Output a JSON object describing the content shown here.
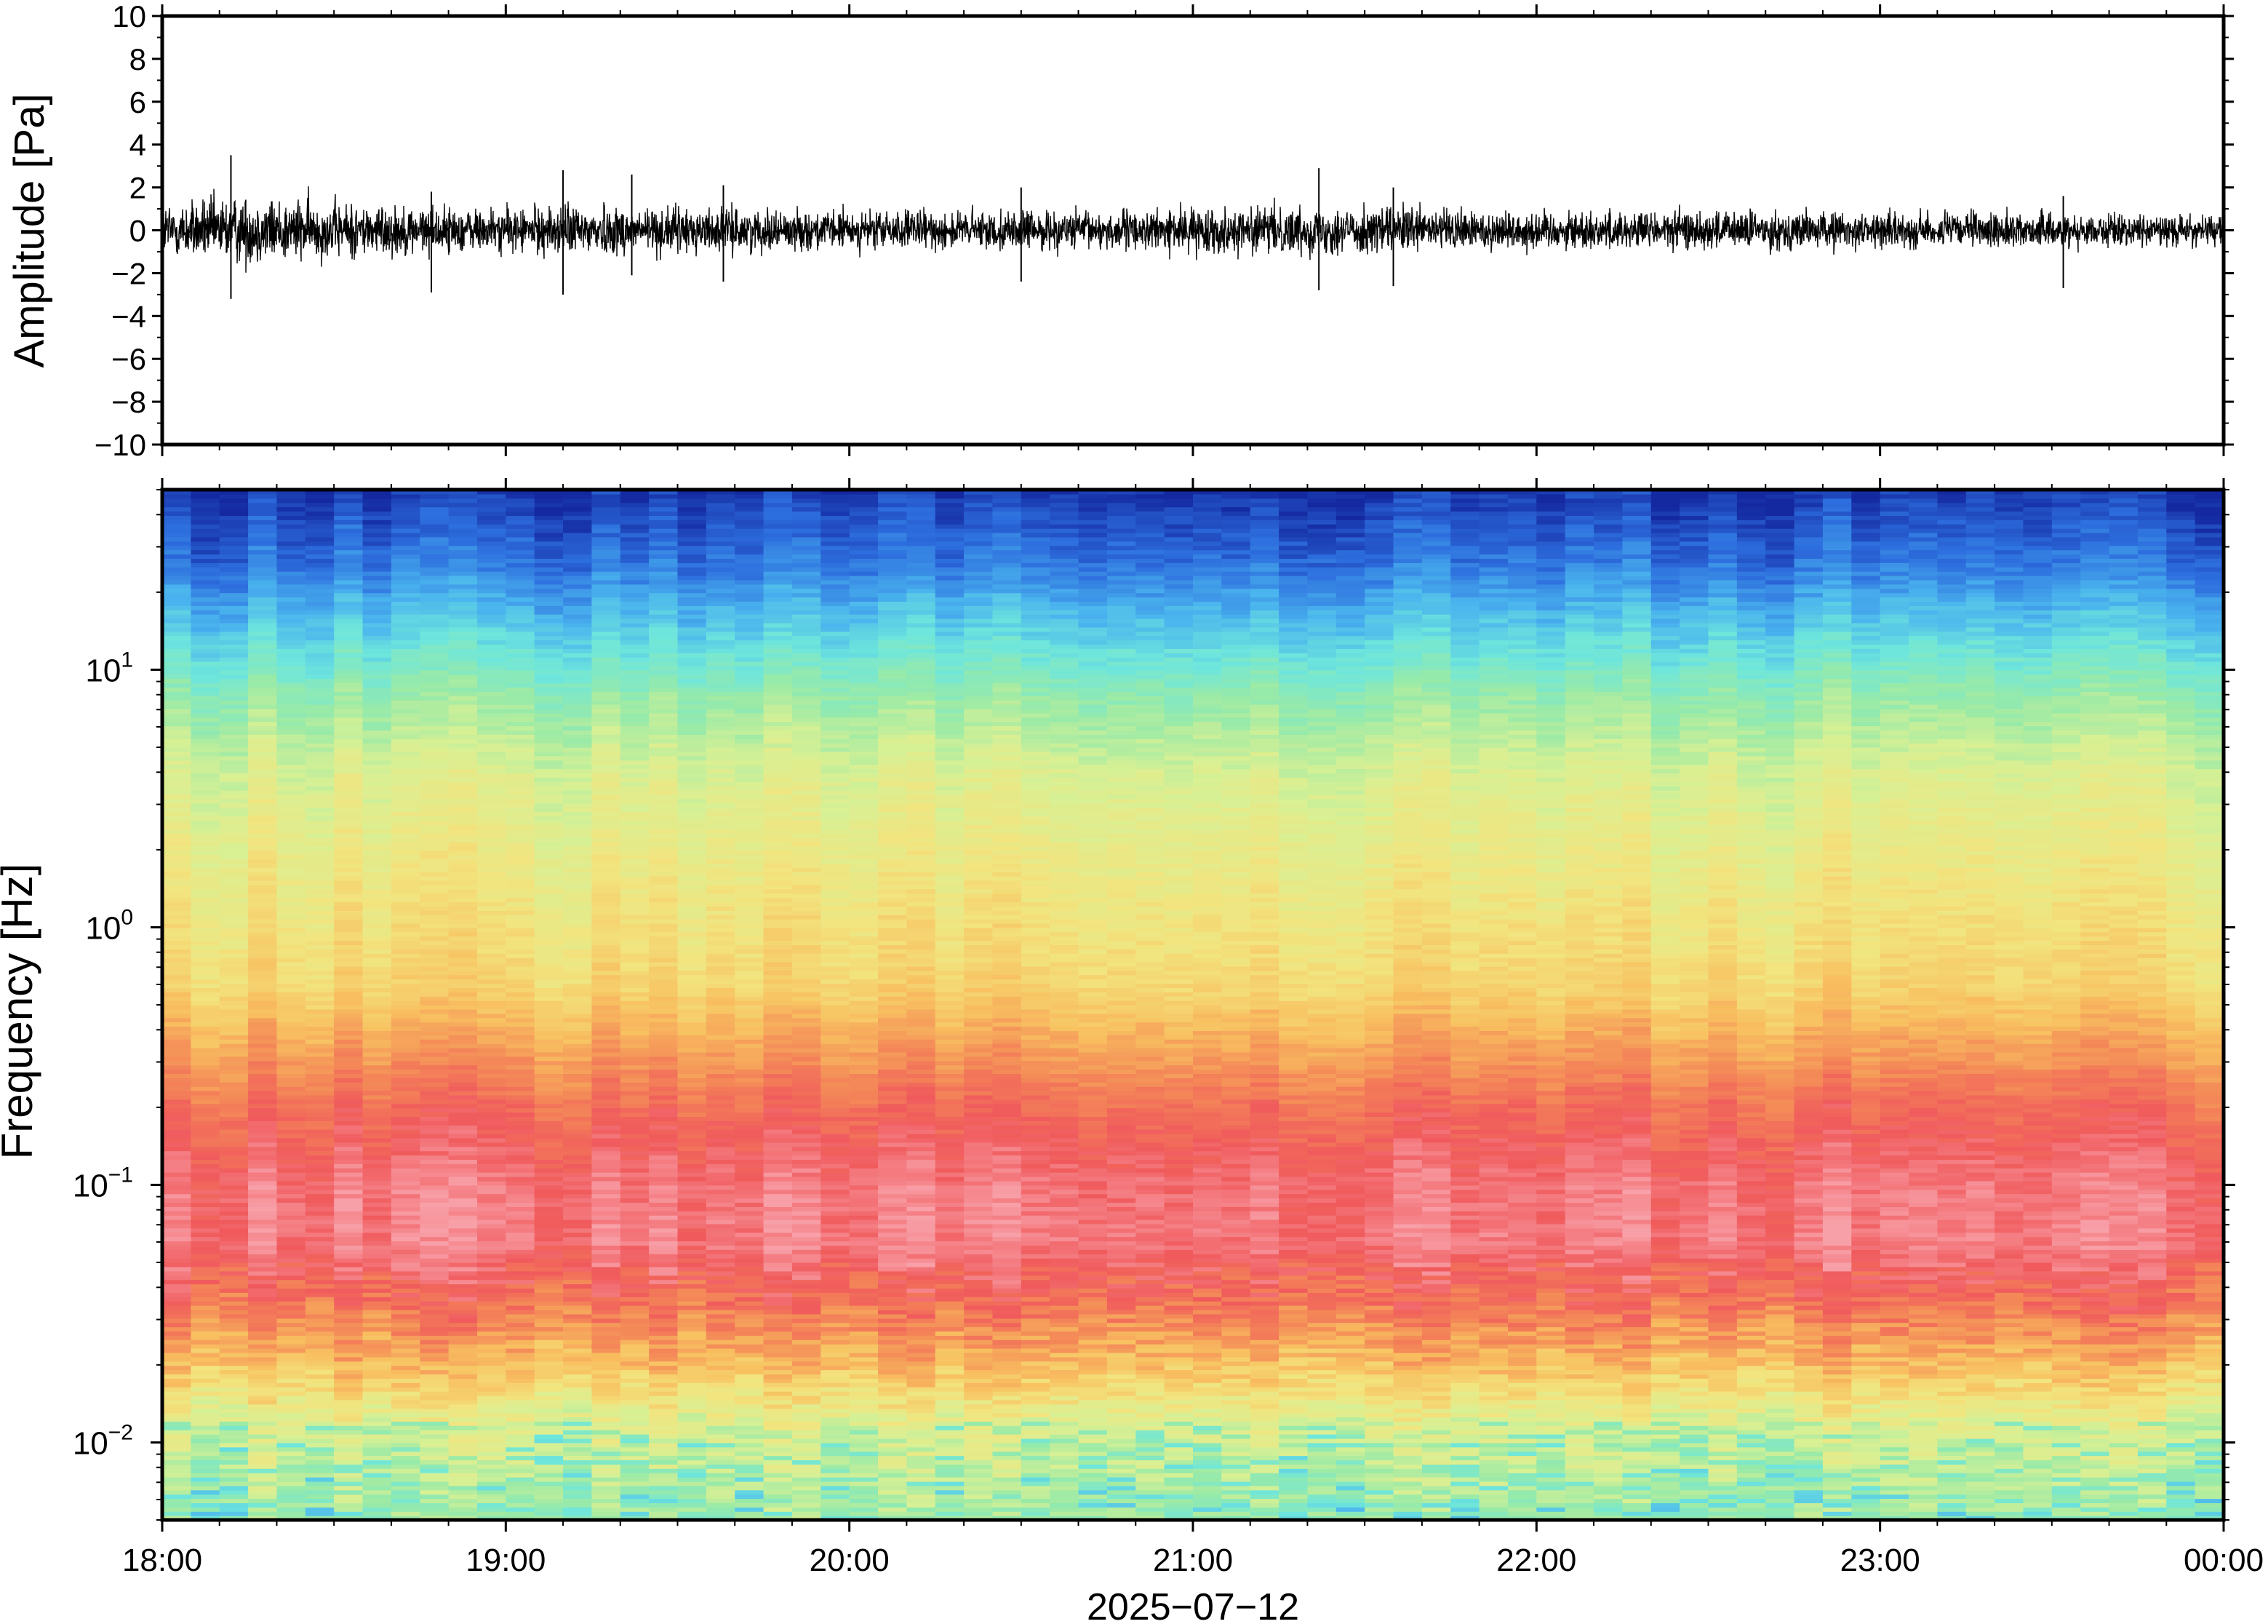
{
  "chart_data": [
    {
      "type": "line",
      "panel": "waveform",
      "ylabel": "Amplitude [Pa]",
      "ylim": [
        -10,
        10
      ],
      "yticks": [
        {
          "value": 10,
          "label": "10"
        },
        {
          "value": 8,
          "label": "8"
        },
        {
          "value": 6,
          "label": "6"
        },
        {
          "value": 4,
          "label": "4"
        },
        {
          "value": 2,
          "label": "2"
        },
        {
          "value": 0,
          "label": "0"
        },
        {
          "value": -2,
          "label": "−2"
        },
        {
          "value": -4,
          "label": "−4"
        },
        {
          "value": -6,
          "label": "−6"
        },
        {
          "value": -8,
          "label": "−8"
        },
        {
          "value": -10,
          "label": "−10"
        }
      ],
      "x_range": [
        "2025-07-12T18:00",
        "2025-07-13T00:00"
      ],
      "envelope": {
        "times": [
          "18:00",
          "18:15",
          "18:30",
          "18:45",
          "19:00",
          "19:15",
          "19:30",
          "19:45",
          "20:00",
          "20:15",
          "20:30",
          "20:45",
          "21:00",
          "21:15",
          "21:30",
          "21:45",
          "22:00",
          "22:15",
          "22:30",
          "22:45",
          "23:00",
          "23:15",
          "23:30",
          "23:45",
          "00:00"
        ],
        "amplitude": [
          1.3,
          1.6,
          1.3,
          1.1,
          1.0,
          1.2,
          1.1,
          0.9,
          0.9,
          0.9,
          0.9,
          0.9,
          1.0,
          1.1,
          1.1,
          1.0,
          0.9,
          0.9,
          0.9,
          0.9,
          0.8,
          0.8,
          0.8,
          0.7,
          0.7
        ]
      },
      "spikes": [
        {
          "time": "18:12",
          "max": 3.5,
          "min": -3.2
        },
        {
          "time": "18:47",
          "max": 1.8,
          "min": -2.9
        },
        {
          "time": "19:10",
          "max": 2.8,
          "min": -3.0
        },
        {
          "time": "19:22",
          "max": 2.6,
          "min": -2.1
        },
        {
          "time": "19:38",
          "max": 2.1,
          "min": -2.4
        },
        {
          "time": "20:30",
          "max": 2.0,
          "min": -2.4
        },
        {
          "time": "21:22",
          "max": 2.9,
          "min": -2.8
        },
        {
          "time": "21:35",
          "max": 2.0,
          "min": -2.6
        },
        {
          "time": "23:32",
          "max": 1.6,
          "min": -2.7
        }
      ]
    },
    {
      "type": "heatmap",
      "panel": "spectrogram",
      "ylabel": "Frequency [Hz]",
      "yscale": "log",
      "ylim": [
        0.005,
        50
      ],
      "yticks": [
        {
          "value": 0.01,
          "base": "10",
          "exp": "−2"
        },
        {
          "value": 0.1,
          "base": "10",
          "exp": "−1"
        },
        {
          "value": 1,
          "base": "10",
          "exp": "0"
        },
        {
          "value": 10,
          "base": "10",
          "exp": "1"
        }
      ],
      "colormap": [
        "#1428a0",
        "#2d6ede",
        "#4ab4ee",
        "#6ee6dc",
        "#98eaa8",
        "#d8f094",
        "#f2e47e",
        "#f8c060",
        "#f48a58",
        "#f05a5c",
        "#f8a0a8"
      ],
      "profile": [
        {
          "freq": 0.005,
          "level": 0.4
        },
        {
          "freq": 0.012,
          "level": 0.52
        },
        {
          "freq": 0.02,
          "level": 0.7
        },
        {
          "freq": 0.035,
          "level": 0.85
        },
        {
          "freq": 0.06,
          "level": 0.95
        },
        {
          "freq": 0.1,
          "level": 0.94
        },
        {
          "freq": 0.2,
          "level": 0.86
        },
        {
          "freq": 0.35,
          "level": 0.75
        },
        {
          "freq": 0.6,
          "level": 0.64
        },
        {
          "freq": 1.5,
          "level": 0.58
        },
        {
          "freq": 4,
          "level": 0.51
        },
        {
          "freq": 8,
          "level": 0.39
        },
        {
          "freq": 15,
          "level": 0.24
        },
        {
          "freq": 25,
          "level": 0.12
        },
        {
          "freq": 50,
          "level": 0.02
        }
      ],
      "xlabel": "2025−07−12",
      "xticks": [
        {
          "time": "18:00",
          "label": "18:00"
        },
        {
          "time": "19:00",
          "label": "19:00"
        },
        {
          "time": "20:00",
          "label": "20:00"
        },
        {
          "time": "21:00",
          "label": "21:00"
        },
        {
          "time": "22:00",
          "label": "22:00"
        },
        {
          "time": "23:00",
          "label": "23:00"
        },
        {
          "time": "00:00",
          "label": "00:00"
        }
      ]
    }
  ]
}
